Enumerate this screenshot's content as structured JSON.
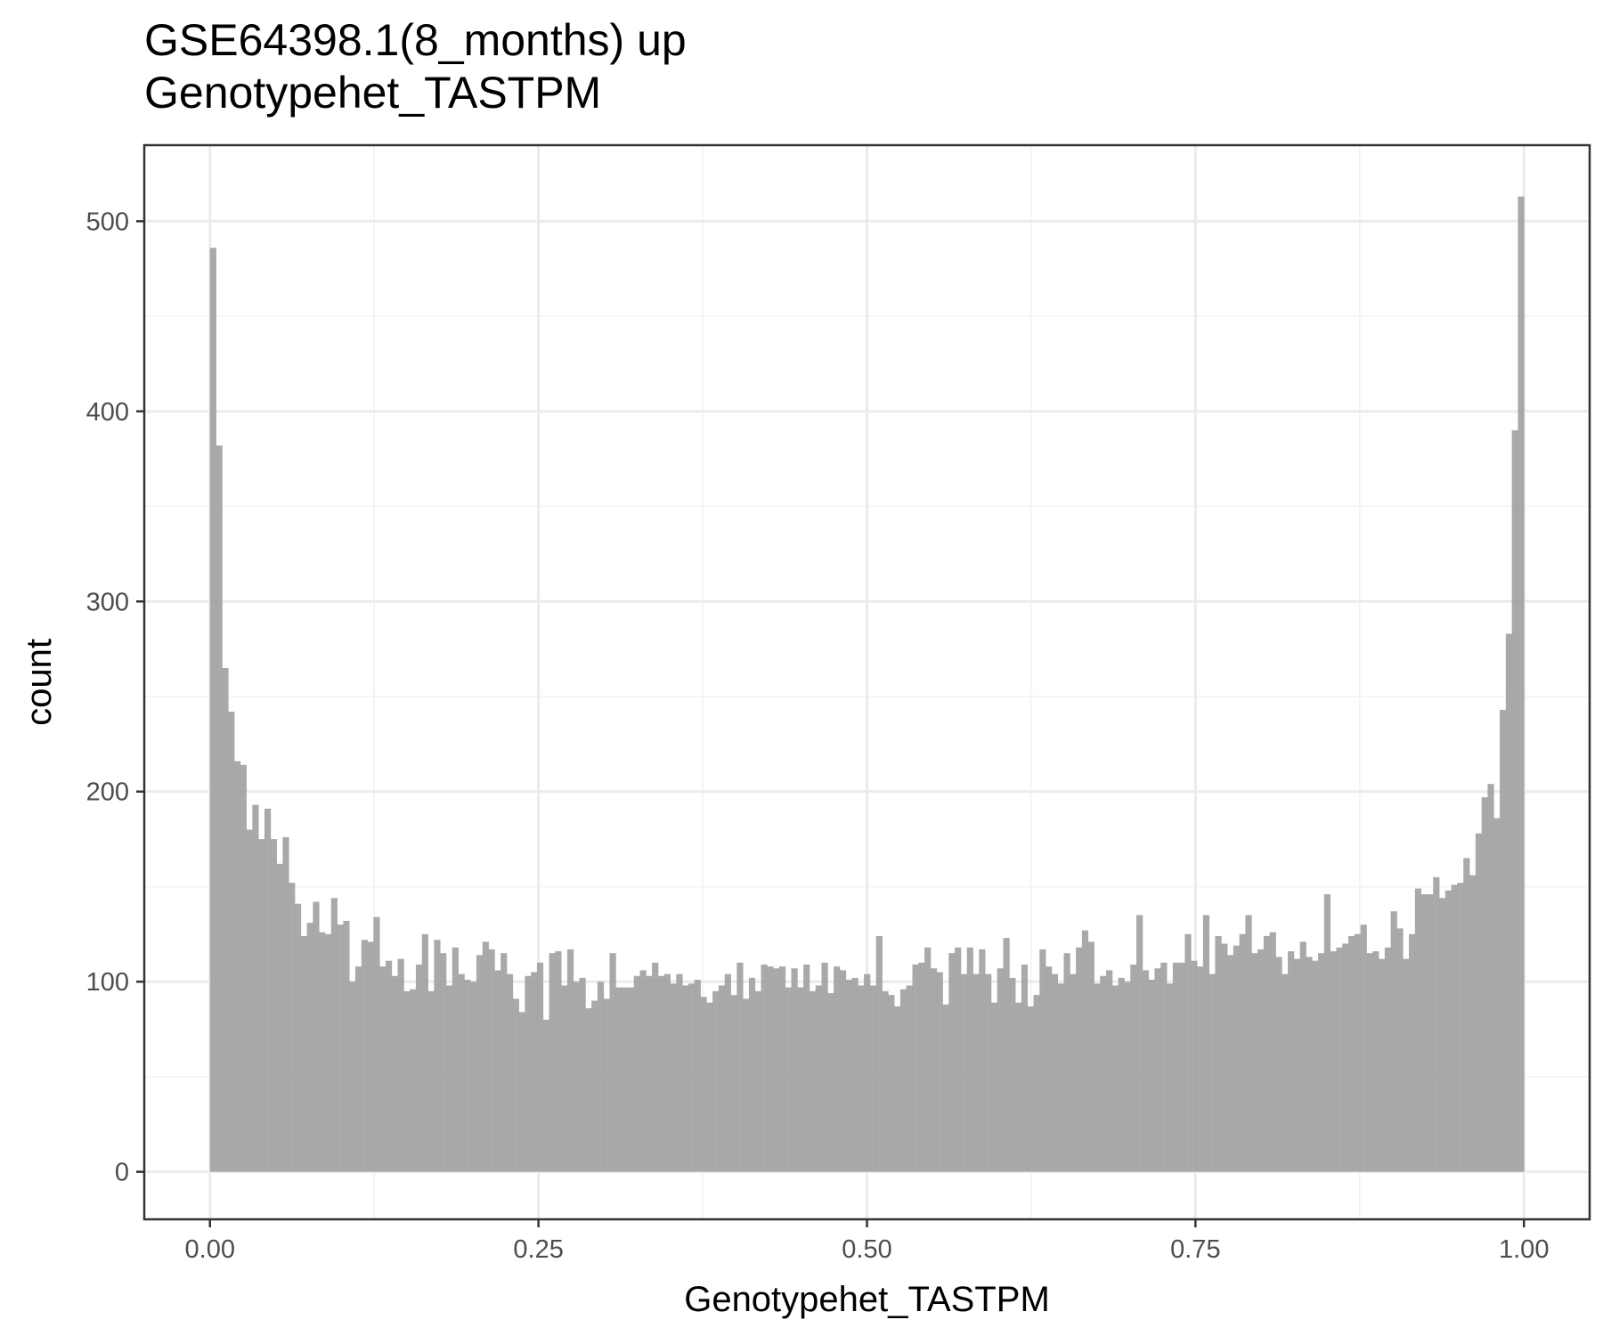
{
  "chart_data": {
    "type": "bar",
    "title_lines": [
      "GSE64398.1(8_months) up",
      "Genotypehet_TASTPM"
    ],
    "xlabel": "Genotypehet_TASTPM",
    "ylabel": "count",
    "xlim": [
      -0.05,
      1.05
    ],
    "ylim": [
      -25,
      540
    ],
    "x_ticks": [
      0.0,
      0.25,
      0.5,
      0.75,
      1.0
    ],
    "x_tick_labels": [
      "0.00",
      "0.25",
      "0.50",
      "0.75",
      "1.00"
    ],
    "y_ticks": [
      0,
      100,
      200,
      300,
      400,
      500
    ],
    "y_tick_labels": [
      "0",
      "100",
      "200",
      "300",
      "400",
      "500"
    ],
    "grid": true,
    "bin_range": [
      0.0,
      1.0
    ],
    "bar_color": "#a0a0a0",
    "values": [
      486,
      382,
      265,
      242,
      216,
      214,
      180,
      193,
      175,
      191,
      175,
      162,
      176,
      152,
      141,
      124,
      131,
      142,
      126,
      125,
      144,
      130,
      132,
      100,
      108,
      122,
      121,
      134,
      108,
      111,
      103,
      112,
      95,
      96,
      109,
      125,
      95,
      122,
      115,
      98,
      118,
      104,
      101,
      100,
      114,
      121,
      117,
      106,
      115,
      104,
      91,
      84,
      103,
      105,
      110,
      80,
      115,
      116,
      98,
      117,
      100,
      102,
      86,
      90,
      100,
      91,
      115,
      97,
      97,
      97,
      103,
      106,
      103,
      110,
      103,
      104,
      99,
      104,
      98,
      99,
      101,
      92,
      89,
      95,
      98,
      104,
      93,
      110,
      91,
      102,
      95,
      109,
      108,
      107,
      108,
      97,
      107,
      97,
      109,
      95,
      98,
      110,
      94,
      108,
      106,
      101,
      102,
      98,
      104,
      98,
      124,
      95,
      93,
      87,
      96,
      98,
      109,
      110,
      118,
      107,
      105,
      88,
      115,
      118,
      104,
      118,
      104,
      117,
      104,
      89,
      107,
      123,
      102,
      89,
      109,
      87,
      93,
      117,
      108,
      104,
      99,
      115,
      104,
      118,
      127,
      121,
      99,
      103,
      106,
      98,
      102,
      100,
      109,
      135,
      106,
      101,
      107,
      110,
      99,
      110,
      110,
      125,
      111,
      108,
      135,
      104,
      124,
      120,
      114,
      119,
      125,
      135,
      115,
      117,
      124,
      126,
      113,
      104,
      116,
      112,
      121,
      113,
      111,
      115,
      146,
      116,
      118,
      120,
      124,
      125,
      130,
      115,
      116,
      112,
      118,
      137,
      128,
      112,
      125,
      149,
      146,
      146,
      155,
      144,
      148,
      151,
      152,
      165,
      156,
      178,
      197,
      204,
      186,
      243,
      283,
      390,
      513
    ]
  }
}
